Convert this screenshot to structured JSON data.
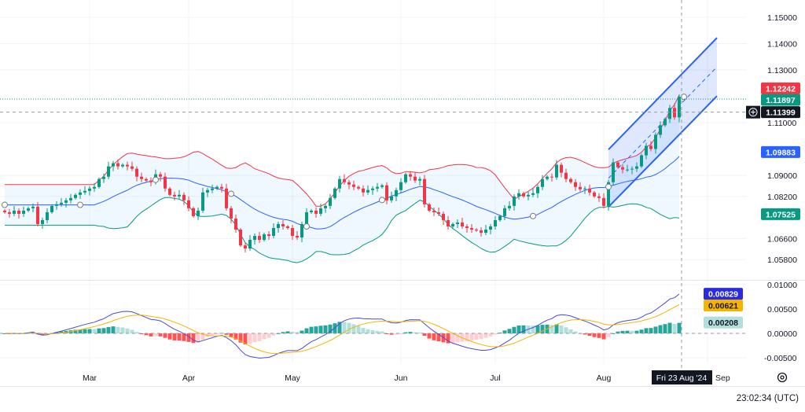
{
  "chart_data": [
    {
      "type": "candlestick",
      "interval": "1 bar per trading day",
      "close": [
        1.076,
        1.0754,
        1.0766,
        1.0754,
        1.0766,
        1.0775,
        1.0781,
        1.0715,
        1.073,
        1.076,
        1.0784,
        1.079,
        1.0796,
        1.0805,
        1.0814,
        1.0826,
        1.0835,
        1.0841,
        1.085,
        1.0856,
        1.0886,
        1.0895,
        1.0934,
        1.0946,
        1.0934,
        1.094,
        1.0934,
        1.0925,
        1.0895,
        1.0886,
        1.088,
        1.0874,
        1.0904,
        1.0895,
        1.085,
        1.0826,
        1.082,
        1.0826,
        1.0805,
        1.0775,
        1.0745,
        1.0766,
        1.0835,
        1.0844,
        1.085,
        1.0856,
        1.085,
        1.0775,
        1.0736,
        1.0694,
        1.0634,
        1.0622,
        1.0655,
        1.067,
        1.0655,
        1.0676,
        1.067,
        1.07,
        1.0715,
        1.0706,
        1.07,
        1.067,
        1.0664,
        1.0715,
        1.076,
        1.0766,
        1.0754,
        1.0775,
        1.0784,
        1.0814,
        1.085,
        1.0886,
        1.0874,
        1.0865,
        1.0856,
        1.085,
        1.0835,
        1.0844,
        1.085,
        1.0856,
        1.0862,
        1.0805,
        1.082,
        1.0844,
        1.0874,
        1.0904,
        1.0895,
        1.088,
        1.0886,
        1.079,
        1.0766,
        1.076,
        1.0754,
        1.073,
        1.0706,
        1.0715,
        1.0721,
        1.0706,
        1.07,
        1.0694,
        1.0691,
        1.0682,
        1.0694,
        1.0706,
        1.073,
        1.0745,
        1.0775,
        1.0784,
        1.082,
        1.0832,
        1.082,
        1.0826,
        1.0832,
        1.0856,
        1.0886,
        1.0895,
        1.0892,
        1.094,
        1.091,
        1.0886,
        1.0874,
        1.0856,
        1.0847,
        1.085,
        1.0835,
        1.082,
        1.0814,
        1.0784,
        1.0874,
        1.0949,
        1.0931,
        1.0922,
        1.0922,
        1.0925,
        1.0934,
        1.0976,
        1.1012,
        1.1,
        1.1054,
        1.109,
        1.1114,
        1.1156,
        1.112,
        1.1198
      ],
      "x_ticks": [
        {
          "label": "Mar",
          "bar": 18
        },
        {
          "label": "Apr",
          "bar": 39
        },
        {
          "label": "May",
          "bar": 61
        },
        {
          "label": "Jun",
          "bar": 84
        },
        {
          "label": "Jul",
          "bar": 104
        },
        {
          "label": "Aug",
          "bar": 127
        },
        {
          "label": "Sep",
          "bar": 149
        }
      ],
      "y_ticks": [
        "1.15000",
        "1.14000",
        "1.13000",
        "1.11000",
        "1.09000",
        "1.08200",
        "1.06600",
        "1.05800"
      ],
      "ylim": [
        1.052,
        1.1566
      ],
      "grid": true,
      "indicators": {
        "bollinger": {
          "length": 20,
          "mult": 2,
          "upper_color": "#f23645",
          "basis_color": "#2962ff",
          "lower_color": "#089981"
        },
        "macd": {
          "fast": 12,
          "slow": 26,
          "signal": 9,
          "macd_color": "#4a4ad8",
          "signal_color": "#f5b400"
        }
      },
      "channel": {
        "start_bar": 128,
        "end_bar": 151,
        "upper": [
          1.0998,
          1.1422
        ],
        "lower": [
          1.078,
          1.1201
        ],
        "color": "#2962ff"
      },
      "markers_bars": [
        0,
        16,
        32,
        48,
        64,
        80,
        112,
        128
      ],
      "colors": {
        "up": "#089981",
        "down": "#f23645"
      }
    },
    {
      "type": "bar+line",
      "title": "",
      "y_ticks": [
        "0.01000",
        "0.00500",
        "0.00000",
        "-0.00500"
      ],
      "ylim": [
        -0.0075,
        0.01
      ]
    }
  ],
  "price_tags": [
    {
      "value": "1.12242",
      "bg": "#f23645",
      "fg": "#ffffff",
      "price": 1.12242
    },
    {
      "value": "1.11897",
      "bg": "#089981",
      "fg": "#ffffff",
      "price": 1.11897
    },
    {
      "value": "1.11399",
      "bg": "#131722",
      "fg": "#ffffff",
      "price": 1.11399
    },
    {
      "value": "1.09883",
      "bg": "#2962ff",
      "fg": "#ffffff",
      "price": 1.09883
    },
    {
      "value": "1.07525",
      "bg": "#089981",
      "fg": "#ffffff",
      "price": 1.07525
    }
  ],
  "macd_tags": [
    {
      "value": "0.00829",
      "bg": "#2a2ae0",
      "fg": "#ffffff",
      "val": 0.00829
    },
    {
      "value": "0.00621",
      "bg": "#f5b400",
      "fg": "#131722",
      "val": 0.00621
    },
    {
      "value": "0.00208",
      "bg": "#b2dfdb",
      "fg": "#131722",
      "val": 0.00208
    }
  ],
  "crosshair": {
    "date_label": "Fri 23 Aug '24",
    "price": 1.11399,
    "bar": 143
  },
  "clock": "23:02:34 (UTC)",
  "icons": {
    "crosshair_add": "plus-circle-icon",
    "settings": "gear-icon"
  }
}
